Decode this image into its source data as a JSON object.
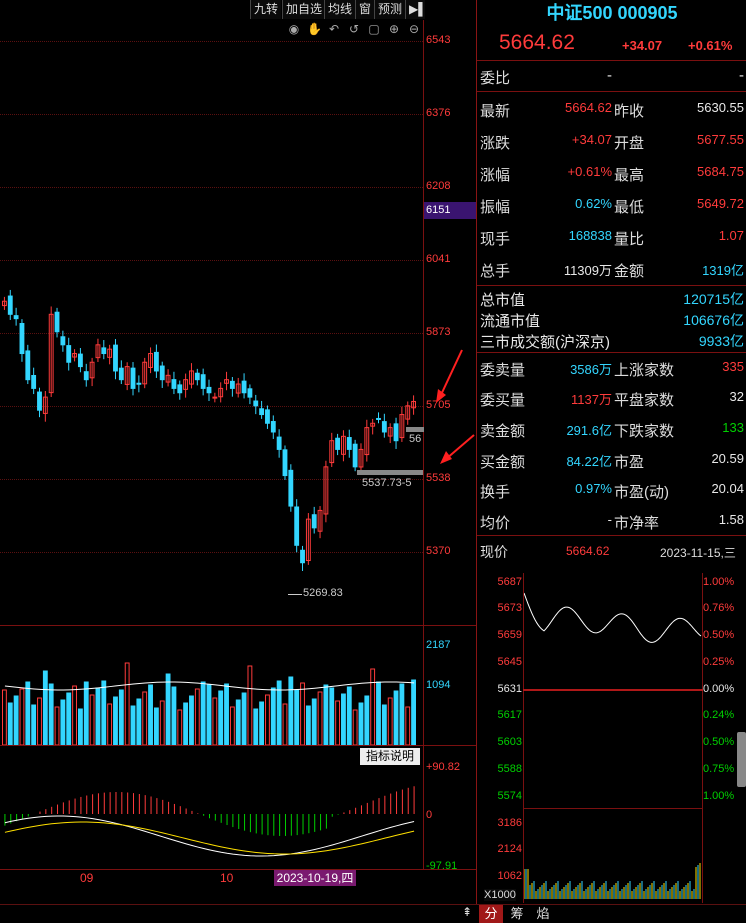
{
  "toolbar": {
    "buttons": [
      "九转",
      "加自选",
      "均线",
      "窗",
      "预测"
    ],
    "exit_icon": "exit-icon",
    "icons": [
      "eye-icon",
      "hand-icon",
      "undo-icon",
      "undo-alt-icon",
      "lock-icon",
      "zoom-in-icon",
      "zoom-out-icon"
    ]
  },
  "kline": {
    "y_labels": [
      "6543",
      "6376",
      "6208",
      "6151",
      "6041",
      "5873",
      "5705",
      "5538",
      "5370"
    ],
    "price_tag_upper": "56",
    "price_tag_lower": "5537.73-5",
    "low_annotation": "5269.83"
  },
  "volume": {
    "labels": [
      "2187",
      "1094"
    ]
  },
  "macd": {
    "button_label": "指标说明",
    "labels": [
      "+90.82",
      "0",
      "-97.91"
    ],
    "x_labels": [
      "09",
      "10"
    ],
    "date_label": "2023-10-19,四"
  },
  "header": {
    "title": "中证500 000905",
    "price": "5664.62",
    "change": "+34.07",
    "change_pct": "+0.61%"
  },
  "quote": {
    "weibi_label": "委比",
    "weibi_v1": "-",
    "weibi_v2": "-",
    "rows": [
      {
        "l1": "最新",
        "v1": "5664.62",
        "l2": "昨收",
        "v2": "5630.55"
      },
      {
        "l1": "涨跌",
        "v1": "+34.07",
        "l2": "开盘",
        "v2": "5677.55"
      },
      {
        "l1": "涨幅",
        "v1": "+0.61%",
        "l2": "最高",
        "v2": "5684.75"
      },
      {
        "l1": "振幅",
        "v1": "0.62%",
        "l2": "最低",
        "v2": "5649.72"
      },
      {
        "l1": "现手",
        "v1": "168838",
        "l2": "量比",
        "v2": "1.07"
      },
      {
        "l1": "总手",
        "v1": "11309万",
        "l2": "金额",
        "v2": "1319亿"
      }
    ],
    "market_rows": [
      {
        "l": "总市值",
        "v": "120715亿"
      },
      {
        "l": "流通市值",
        "v": "106676亿"
      },
      {
        "l": "三市成交额(沪深京)",
        "v": "9933亿"
      }
    ],
    "rows2": [
      {
        "l1": "委卖量",
        "v1": "3586万",
        "l2": "上涨家数",
        "v2": "335"
      },
      {
        "l1": "委买量",
        "v1": "1137万",
        "l2": "平盘家数",
        "v2": "32"
      },
      {
        "l1": "卖金额",
        "v1": "291.6亿",
        "l2": "下跌家数",
        "v2": "133"
      },
      {
        "l1": "买金额",
        "v1": "84.22亿",
        "l2": "市盈",
        "v2": "20.59"
      },
      {
        "l1": "换手",
        "v1": "0.97%",
        "l2": "市盈(动)",
        "v2": "20.04"
      },
      {
        "l1": "均价",
        "v1": "-",
        "l2": "市净率",
        "v2": "1.58"
      }
    ]
  },
  "intraday": {
    "price_label": "现价",
    "price_value": "5664.62",
    "date": "2023-11-15,三",
    "left_labels": [
      "5687",
      "5673",
      "5659",
      "5645",
      "5631",
      "5617",
      "5603",
      "5588",
      "5574"
    ],
    "right_labels": [
      "1.00%",
      "0.76%",
      "0.50%",
      "0.25%",
      "0.00%",
      "0.24%",
      "0.50%",
      "0.75%",
      "1.00%"
    ],
    "vol_labels": [
      "3186",
      "2124",
      "1062"
    ],
    "vol_unit": "X1000"
  },
  "bottom_tabs": [
    "分",
    "筹",
    "焰"
  ],
  "colors": {
    "up": "#ff3b3b",
    "down": "#33d6ff",
    "flat": "#e8e8e8"
  }
}
